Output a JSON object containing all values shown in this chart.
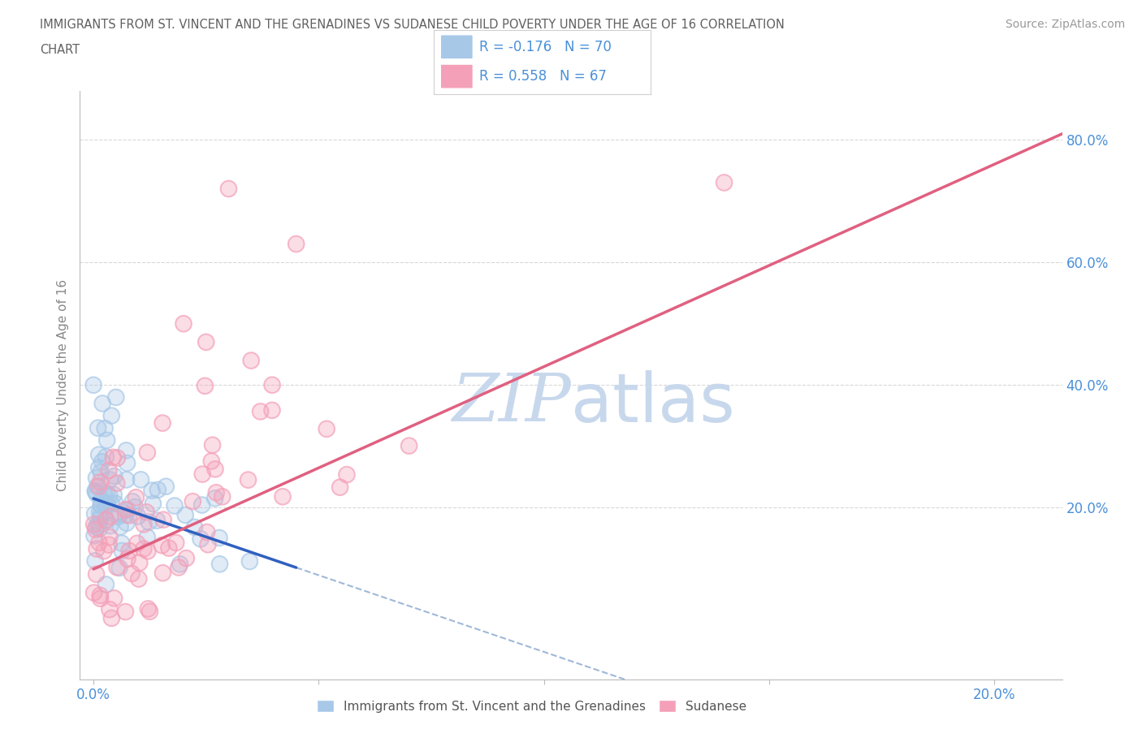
{
  "title_line1": "IMMIGRANTS FROM ST. VINCENT AND THE GRENADINES VS SUDANESE CHILD POVERTY UNDER THE AGE OF 16 CORRELATION",
  "title_line2": "CHART",
  "source": "Source: ZipAtlas.com",
  "ylabel": "Child Poverty Under the Age of 16",
  "r_blue": -0.176,
  "n_blue": 70,
  "r_pink": 0.558,
  "n_pink": 67,
  "blue_color": "#a8c8e8",
  "pink_color": "#f4a0b8",
  "blue_line_color": "#3060c0",
  "pink_line_color": "#e06080",
  "dashed_line_color": "#a0b8d8",
  "watermark_color": "#c8d8ec",
  "legend_text_color": "#4a90d9",
  "title_color": "#606060",
  "source_color": "#999999",
  "background_color": "#ffffff",
  "grid_color": "#d8d8d8",
  "xmin": -0.003,
  "xmax": 0.215,
  "ymin": -0.08,
  "ymax": 0.88,
  "blue_intercept": 0.22,
  "blue_slope": -3.0,
  "pink_intercept": 0.08,
  "pink_slope": 3.5
}
